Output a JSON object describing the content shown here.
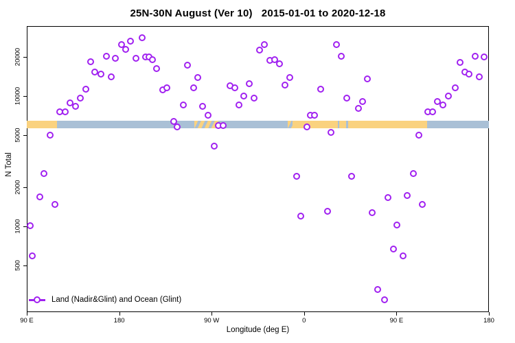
{
  "title": "25N-30N August (Ver 10)   2015-01-01 to 2020-12-18",
  "colors": {
    "point": "#A020F0",
    "land": "#FAD27F",
    "ocean": "#A9C0D6",
    "axis": "#000000"
  },
  "legend": {
    "label": "Land (Nadir&Glint) and Ocean (Glint)",
    "marker": "open-circle-on-line",
    "position": "bottom-left"
  },
  "chart_data": {
    "type": "scatter",
    "title": "25N-30N August (Ver 10)   2015-01-01 to 2020-12-18",
    "xlabel": "Longitude (deg E)",
    "ylabel": "N Total",
    "grid": false,
    "x_axis": {
      "description": "longitude wrapping east from 90E; degrees measured from left edge (0 = 90E, 450 = 180 after full wrap)",
      "span_deg": 450,
      "tick_positions_deg": [
        0,
        90,
        180,
        270,
        360,
        450
      ],
      "tick_labels": [
        "90 E",
        "180",
        "90 W",
        "0",
        "90 E",
        "180"
      ]
    },
    "y_axis": {
      "scale": "log10",
      "range": [
        220,
        34400
      ],
      "tick_values": [
        500,
        1000,
        2000,
        5000,
        10000,
        20000
      ]
    },
    "surface_band": {
      "description": "land/ocean surface type strip along longitude",
      "from_value": 5660,
      "to_value": 6430,
      "segments": [
        {
          "surface": "land",
          "a": 0,
          "b": 29.5
        },
        {
          "surface": "ocean",
          "a": 29.5,
          "b": 163
        },
        {
          "surface": "mixed",
          "a": 163,
          "b": 189
        },
        {
          "surface": "ocean",
          "a": 189,
          "b": 254
        },
        {
          "surface": "mixed",
          "a": 254,
          "b": 258.5
        },
        {
          "surface": "land",
          "a": 258.5,
          "b": 303
        },
        {
          "surface": "ocean",
          "a": 303,
          "b": 304.5
        },
        {
          "surface": "land",
          "a": 304.5,
          "b": 311
        },
        {
          "surface": "ocean",
          "a": 311,
          "b": 313
        },
        {
          "surface": "land",
          "a": 313,
          "b": 390
        },
        {
          "surface": "ocean",
          "a": 390,
          "b": 450
        }
      ]
    },
    "points_format": "[deg_east_of_90E_along_axis, N_total]",
    "points": [
      [
        3.3,
        1010
      ],
      [
        5.3,
        592
      ],
      [
        12.9,
        1690
      ],
      [
        16.9,
        2540
      ],
      [
        22.5,
        5030
      ],
      [
        27.4,
        1480
      ],
      [
        31.9,
        7540
      ],
      [
        37.4,
        7540
      ],
      [
        41.9,
        8860
      ],
      [
        47.5,
        8340
      ],
      [
        51.9,
        9610
      ],
      [
        57.5,
        11300
      ],
      [
        62.0,
        18300
      ],
      [
        66.4,
        15300
      ],
      [
        72.0,
        14700
      ],
      [
        77.6,
        20300
      ],
      [
        82.0,
        14100
      ],
      [
        86.5,
        19500
      ],
      [
        92.1,
        24800
      ],
      [
        96.5,
        22900
      ],
      [
        101.0,
        26400
      ],
      [
        106.5,
        19500
      ],
      [
        112.1,
        28000
      ],
      [
        115.5,
        19900
      ],
      [
        118.8,
        19900
      ],
      [
        122.2,
        19100
      ],
      [
        126.6,
        16300
      ],
      [
        132.2,
        11100
      ],
      [
        136.6,
        11500
      ],
      [
        143.3,
        6410
      ],
      [
        146.6,
        5790
      ],
      [
        152.3,
        8510
      ],
      [
        156.7,
        17300
      ],
      [
        162.3,
        11500
      ],
      [
        166.7,
        13800
      ],
      [
        171.2,
        8340
      ],
      [
        176.7,
        7100
      ],
      [
        182.3,
        4110
      ],
      [
        186.8,
        5910
      ],
      [
        191.2,
        5910
      ],
      [
        197.9,
        12000
      ],
      [
        202.4,
        11500
      ],
      [
        206.8,
        8510
      ],
      [
        211.3,
        10000
      ],
      [
        216.8,
        12500
      ],
      [
        221.3,
        9610
      ],
      [
        226.9,
        22400
      ],
      [
        231.3,
        24800
      ],
      [
        236.9,
        18700
      ],
      [
        241.4,
        19100
      ],
      [
        245.8,
        17600
      ],
      [
        251.4,
        12200
      ],
      [
        255.9,
        13800
      ],
      [
        262.6,
        2430
      ],
      [
        267.0,
        1200
      ],
      [
        272.6,
        5790
      ],
      [
        275.9,
        7100
      ],
      [
        280.3,
        7100
      ],
      [
        286.0,
        11300
      ],
      [
        292.7,
        1300
      ],
      [
        296.0,
        5240
      ],
      [
        301.6,
        24800
      ],
      [
        306.0,
        20300
      ],
      [
        311.6,
        9610
      ],
      [
        316.1,
        2430
      ],
      [
        322.8,
        8020
      ],
      [
        327.2,
        9040
      ],
      [
        331.7,
        13600
      ],
      [
        336.1,
        1270
      ],
      [
        341.7,
        329
      ],
      [
        348.1,
        274
      ],
      [
        351.7,
        1660
      ],
      [
        357.3,
        668
      ],
      [
        360.6,
        1020
      ],
      [
        366.2,
        592
      ],
      [
        370.6,
        1730
      ],
      [
        376.2,
        2540
      ],
      [
        381.8,
        5030
      ],
      [
        385.1,
        1470
      ],
      [
        390.7,
        7540
      ],
      [
        395.2,
        7540
      ],
      [
        399.6,
        9040
      ],
      [
        405.2,
        8510
      ],
      [
        410.7,
        10000
      ],
      [
        417.4,
        11500
      ],
      [
        421.9,
        18000
      ],
      [
        426.4,
        15300
      ],
      [
        430.8,
        14700
      ],
      [
        436.4,
        20300
      ],
      [
        440.9,
        14100
      ],
      [
        445.4,
        19900
      ]
    ]
  }
}
